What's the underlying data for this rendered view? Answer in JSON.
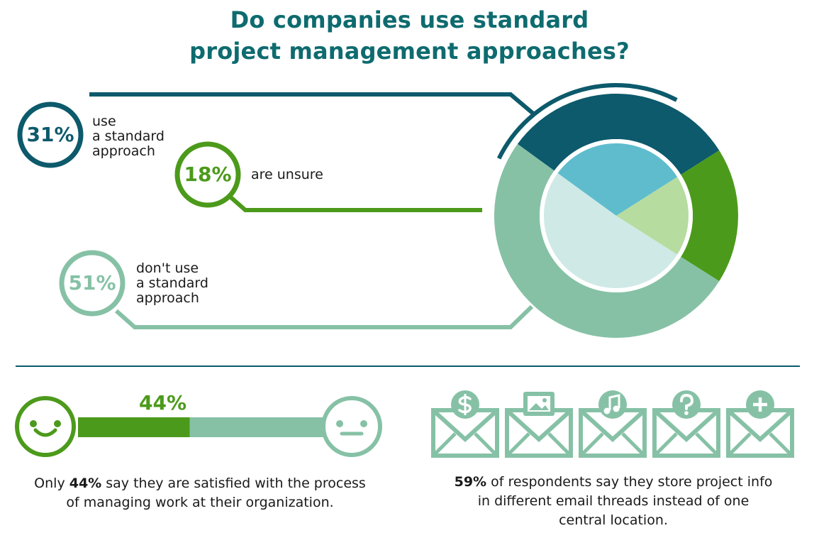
{
  "title_line1": "Do companies use standard",
  "title_line2": "project management approaches?",
  "chart_data": {
    "type": "pie",
    "title": "Do companies use standard project management approaches?",
    "slices": [
      {
        "label": "use a standard approach",
        "value": 31,
        "value_label": "31%",
        "color": "#0c5a6b",
        "inner_color": "#5ebccd"
      },
      {
        "label": "are unsure",
        "value": 18,
        "value_label": "18%",
        "color": "#4c9a1b",
        "inner_color": "#b6dca0"
      },
      {
        "label": "don't use a standard approach",
        "value": 51,
        "value_label": "51%",
        "color": "#86c1a6",
        "inner_color": "#cfe9e6"
      }
    ]
  },
  "callouts": {
    "use": {
      "line1": "use",
      "line2": "a standard",
      "line3": "approach"
    },
    "unsure": {
      "line1": "are unsure"
    },
    "dont": {
      "line1": "don't use",
      "line2": "a standard",
      "line3": "approach"
    }
  },
  "satisfaction": {
    "value": 44,
    "value_label": "44%",
    "filled_color": "#4c9a1b",
    "rest_color": "#86c1a6",
    "caption_pre": "Only ",
    "caption_bold": "44%",
    "caption_post1": " say they are satisfied with the process",
    "caption_line2": "of managing work at their organization."
  },
  "email": {
    "icons": [
      "dollar-icon",
      "image-icon",
      "music-icon",
      "question-icon",
      "plus-icon"
    ],
    "icon_color": "#86c1a6",
    "caption_bold": "59%",
    "caption_post1": " of respondents say they store project info",
    "caption_line2": "in different email threads instead of one",
    "caption_line3": "central location."
  },
  "colors": {
    "title": "#0e6b6f",
    "divider": "#0c5a6b"
  }
}
